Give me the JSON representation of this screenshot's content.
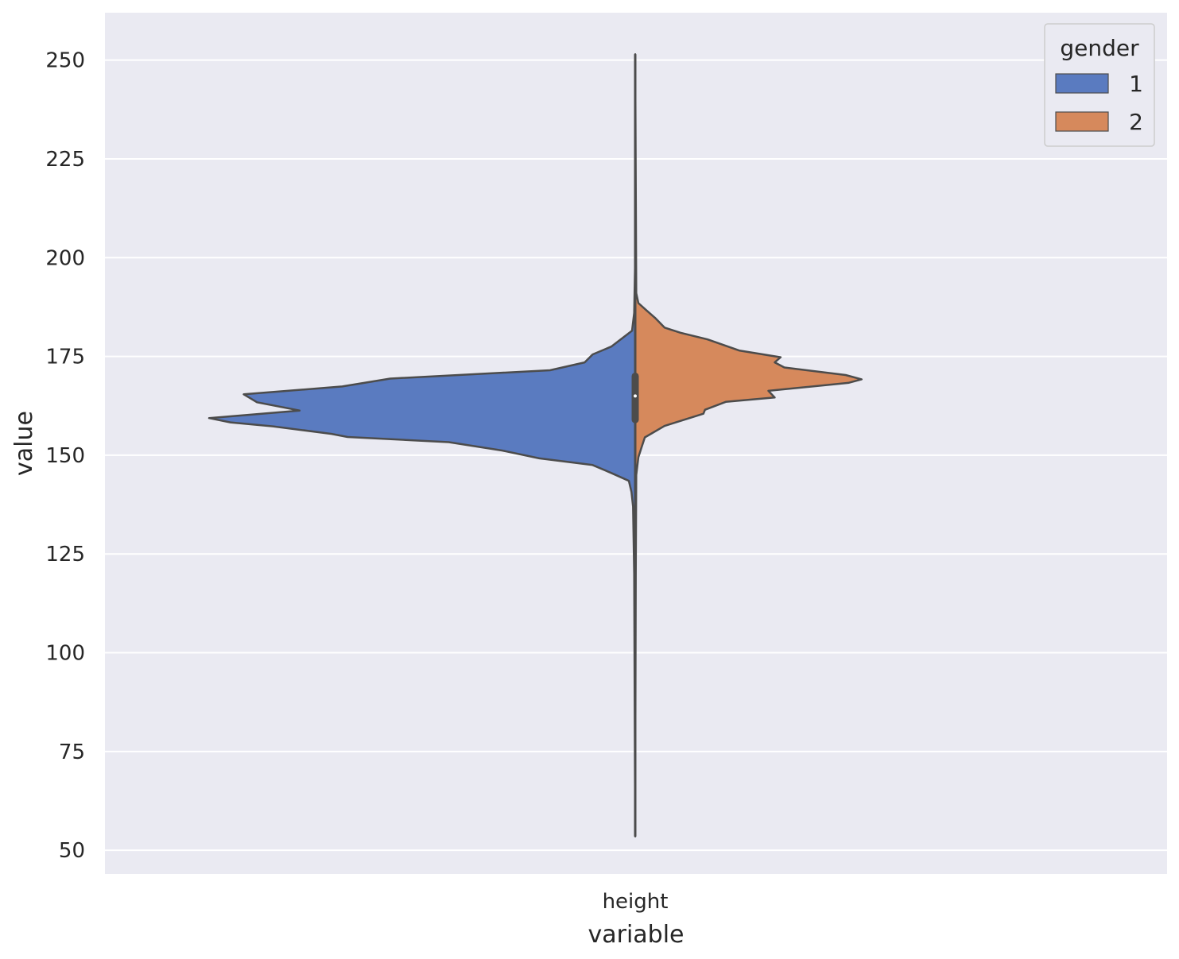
{
  "chart_data": {
    "type": "violin",
    "split": true,
    "categories": [
      "height"
    ],
    "xlabel": "variable",
    "ylabel": "value",
    "ylim": [
      44,
      262
    ],
    "yticks": [
      50,
      75,
      100,
      125,
      150,
      175,
      200,
      225,
      250
    ],
    "grid": true,
    "background": "#eaeaf2",
    "grid_color": "#ffffff",
    "outline_color": "#4c4c4c",
    "legend": {
      "title": "gender",
      "position": "top-right",
      "entries": [
        {
          "label": "1",
          "color": "#5a7bc0"
        },
        {
          "label": "2",
          "color": "#d6895c"
        }
      ]
    },
    "series": [
      {
        "name": "1",
        "side": "left",
        "color": "#5a7bc0",
        "density": [
          [
            53.5,
            0.0
          ],
          [
            120,
            0.002
          ],
          [
            137,
            0.004
          ],
          [
            140.7,
            0.007
          ],
          [
            143.5,
            0.012
          ],
          [
            145.5,
            0.045
          ],
          [
            147.5,
            0.08
          ],
          [
            149.2,
            0.18
          ],
          [
            151.2,
            0.25
          ],
          [
            153.3,
            0.35
          ],
          [
            154.6,
            0.54
          ],
          [
            155.4,
            0.57
          ],
          [
            157.3,
            0.68
          ],
          [
            158.3,
            0.76
          ],
          [
            159.4,
            0.8
          ],
          [
            161.3,
            0.63
          ],
          [
            163.4,
            0.71
          ],
          [
            165.4,
            0.735
          ],
          [
            167.4,
            0.55
          ],
          [
            169.4,
            0.46
          ],
          [
            171.5,
            0.16
          ],
          [
            173.5,
            0.095
          ],
          [
            175.5,
            0.08
          ],
          [
            177.5,
            0.045
          ],
          [
            181.5,
            0.006
          ],
          [
            186,
            0.002
          ],
          [
            200,
            0.0
          ]
        ]
      },
      {
        "name": "2",
        "side": "right",
        "color": "#d6895c",
        "density": [
          [
            63,
            0.0
          ],
          [
            120,
            0.001
          ],
          [
            145,
            0.002
          ],
          [
            149.5,
            0.006
          ],
          [
            152,
            0.012
          ],
          [
            154.5,
            0.018
          ],
          [
            157.4,
            0.055
          ],
          [
            160.5,
            0.128
          ],
          [
            161.5,
            0.131
          ],
          [
            163.5,
            0.17
          ],
          [
            164.6,
            0.262
          ],
          [
            166.3,
            0.25
          ],
          [
            168.3,
            0.4
          ],
          [
            169.2,
            0.425
          ],
          [
            170.3,
            0.395
          ],
          [
            172.2,
            0.28
          ],
          [
            173.5,
            0.262
          ],
          [
            174.8,
            0.273
          ],
          [
            176.5,
            0.195
          ],
          [
            179.3,
            0.136
          ],
          [
            181,
            0.085
          ],
          [
            182.3,
            0.055
          ],
          [
            184.8,
            0.037
          ],
          [
            186.8,
            0.02
          ],
          [
            188.5,
            0.006
          ],
          [
            191,
            0.002
          ],
          [
            251.5,
            0.0
          ]
        ]
      }
    ],
    "box": {
      "q1": 159,
      "median": 165,
      "q3": 170
    }
  }
}
